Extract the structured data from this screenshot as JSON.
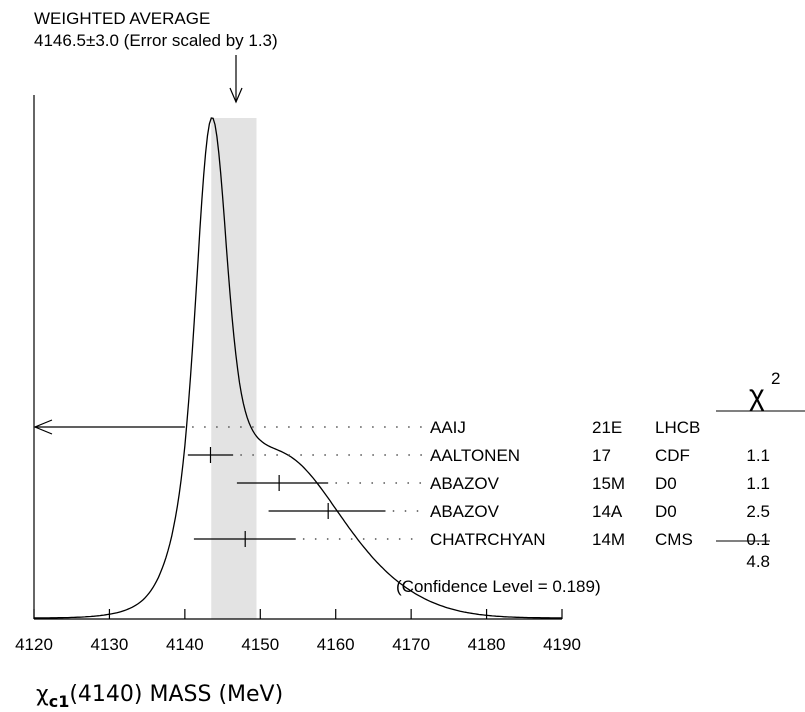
{
  "header": {
    "line1": "WEIGHTED AVERAGE",
    "line2": "4146.5±3.0 (Error scaled by 1.3)"
  },
  "chi2_header": "χ",
  "chi2_sup": "2",
  "chi2_total": "4.8",
  "confidence": "(Confidence Level = 0.189)",
  "chart_data": {
    "type": "ideogram",
    "xlabel_prefix": "χ",
    "xlabel_sub": "c1",
    "xlabel_rest": "(4140) MASS (MeV)",
    "xlim": [
      4120,
      4190
    ],
    "xticks": [
      4120,
      4130,
      4140,
      4150,
      4160,
      4170,
      4180,
      4190
    ],
    "xtick_labels": [
      "4120",
      "4130",
      "4140",
      "4150",
      "4160",
      "4170",
      "4180",
      "4190"
    ],
    "weighted_average": 4146.5,
    "weighted_error": 3.0,
    "measurements": [
      {
        "author": "AAIJ",
        "year": "21E",
        "experiment": "LHCB",
        "chi2": "",
        "value": null,
        "low": null,
        "high": 4140,
        "offscale_left": true
      },
      {
        "author": "AALTONEN",
        "year": "17",
        "experiment": "CDF",
        "chi2": "1.1",
        "value": 4143.4,
        "low": 4140.4,
        "high": 4146.4
      },
      {
        "author": "ABAZOV",
        "year": "15M",
        "experiment": "D0",
        "chi2": "1.1",
        "value": 4152.5,
        "low": 4146.9,
        "high": 4159.0
      },
      {
        "author": "ABAZOV",
        "year": "14A",
        "experiment": "D0",
        "chi2": "2.5",
        "value": 4159.0,
        "low": 4151.1,
        "high": 4166.6
      },
      {
        "author": "CHATRCHYAN",
        "year": "14M",
        "experiment": "CMS",
        "chi2": "0.1",
        "value": 4148.0,
        "low": 4141.2,
        "high": 4154.7
      }
    ]
  }
}
